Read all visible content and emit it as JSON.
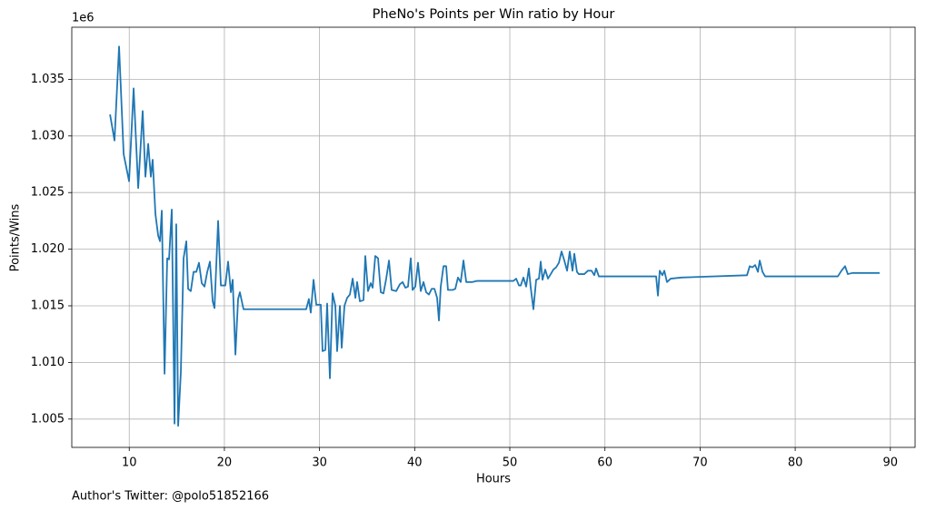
{
  "chart_data": {
    "type": "line",
    "title": "PheNo's Points per Win ratio by Hour",
    "xlabel": "Hours",
    "ylabel": "Points/Wins",
    "y_offset_label": "1e6",
    "footer": "Author's Twitter: @polo51852166",
    "grid": true,
    "xlim": [
      3.96,
      92.6
    ],
    "ylim": [
      1.0025,
      1.0396
    ],
    "xticks": [
      10,
      20,
      30,
      40,
      50,
      60,
      70,
      80,
      90
    ],
    "yticks": [
      1.005,
      {
        "value": 1.01,
        "label": "1.010"
      },
      1.015,
      {
        "value": 1.02,
        "label": "1.020"
      },
      1.025,
      {
        "value": 1.03,
        "label": "1.030"
      },
      1.035
    ],
    "series": [
      {
        "color": "#1f77b4",
        "x": [
          7.98,
          8.45,
          8.93,
          9.41,
          9.98,
          10.46,
          10.94,
          11.41,
          11.7,
          11.99,
          12.27,
          12.46,
          12.75,
          13.04,
          13.23,
          13.42,
          13.71,
          13.99,
          14.18,
          14.47,
          14.76,
          14.94,
          15.14,
          15.42,
          15.71,
          16.0,
          16.19,
          16.47,
          16.76,
          17.05,
          17.33,
          17.62,
          17.91,
          18.2,
          18.48,
          18.77,
          18.96,
          19.34,
          19.63,
          20.1,
          20.39,
          20.68,
          20.87,
          21.16,
          21.44,
          21.63,
          22.01,
          28.6,
          28.88,
          29.08,
          29.37,
          29.66,
          30.13,
          30.32,
          30.61,
          30.8,
          31.09,
          31.37,
          31.66,
          31.85,
          32.14,
          32.33,
          32.62,
          32.9,
          33.19,
          33.48,
          33.77,
          33.95,
          34.24,
          34.62,
          34.81,
          35.1,
          35.38,
          35.58,
          35.86,
          36.15,
          36.44,
          36.72,
          37.01,
          37.3,
          37.58,
          38.06,
          38.44,
          38.73,
          39.02,
          39.3,
          39.59,
          39.78,
          40.07,
          40.35,
          40.64,
          40.93,
          41.21,
          41.5,
          41.79,
          42.08,
          42.36,
          42.55,
          42.74,
          43.03,
          43.31,
          43.5,
          43.98,
          44.27,
          44.55,
          44.84,
          45.13,
          45.42,
          46.08,
          46.56,
          50.38,
          50.67,
          50.96,
          51.15,
          51.43,
          51.72,
          52.0,
          52.2,
          52.48,
          52.77,
          53.06,
          53.25,
          53.44,
          53.72,
          54.01,
          54.3,
          54.58,
          54.87,
          55.16,
          55.44,
          55.73,
          56.02,
          56.3,
          56.59,
          56.78,
          57.06,
          57.25,
          57.83,
          58.21,
          58.59,
          58.88,
          59.07,
          59.36,
          65.38,
          65.57,
          65.76,
          66.04,
          66.24,
          66.52,
          66.91,
          68.05,
          74.93,
          75.22,
          75.5,
          75.79,
          76.08,
          76.27,
          76.56,
          76.84,
          84.48,
          84.86,
          85.24,
          85.53,
          86.0,
          88.87
        ],
        "values": [
          1.0319,
          1.0296,
          1.0379,
          1.0284,
          1.026,
          1.0342,
          1.0254,
          1.0322,
          1.0264,
          1.0293,
          1.0264,
          1.0279,
          1.0231,
          1.0212,
          1.0207,
          1.0234,
          1.009,
          1.0192,
          1.0191,
          1.0235,
          1.0046,
          1.0222,
          1.0044,
          1.0091,
          1.0192,
          1.0207,
          1.0165,
          1.0163,
          1.018,
          1.018,
          1.0188,
          1.017,
          1.0167,
          1.018,
          1.0189,
          1.0154,
          1.0148,
          1.0225,
          1.0168,
          1.0168,
          1.0189,
          1.0162,
          1.0173,
          1.0107,
          1.0156,
          1.0162,
          1.0147,
          1.0147,
          1.0156,
          1.0144,
          1.0173,
          1.0151,
          1.0151,
          1.011,
          1.0111,
          1.0152,
          1.0086,
          1.0161,
          1.015,
          1.011,
          1.015,
          1.0113,
          1.015,
          1.0157,
          1.016,
          1.0174,
          1.0157,
          1.0171,
          1.0154,
          1.0155,
          1.0194,
          1.0163,
          1.017,
          1.0166,
          1.0194,
          1.0192,
          1.0162,
          1.0161,
          1.0174,
          1.019,
          1.0164,
          1.0163,
          1.0169,
          1.0171,
          1.0166,
          1.0167,
          1.0192,
          1.0164,
          1.0167,
          1.0188,
          1.0163,
          1.0171,
          1.0162,
          1.016,
          1.0165,
          1.0165,
          1.0157,
          1.0137,
          1.0167,
          1.0185,
          1.0185,
          1.0164,
          1.0164,
          1.0165,
          1.0175,
          1.0171,
          1.019,
          1.0171,
          1.0171,
          1.0172,
          1.0172,
          1.0174,
          1.0168,
          1.0168,
          1.0175,
          1.0167,
          1.0183,
          1.0166,
          1.0147,
          1.0173,
          1.0174,
          1.0189,
          1.0173,
          1.0182,
          1.0174,
          1.0178,
          1.0182,
          1.0184,
          1.0188,
          1.0198,
          1.019,
          1.0181,
          1.0198,
          1.0181,
          1.0196,
          1.018,
          1.0178,
          1.0178,
          1.0181,
          1.0181,
          1.0177,
          1.0183,
          1.0176,
          1.0176,
          1.0159,
          1.0181,
          1.0177,
          1.0181,
          1.0171,
          1.0174,
          1.0175,
          1.0177,
          1.0185,
          1.0184,
          1.0186,
          1.018,
          1.019,
          1.018,
          1.0176,
          1.0176,
          1.0181,
          1.0185,
          1.0178,
          1.0179,
          1.0179
        ]
      }
    ]
  }
}
